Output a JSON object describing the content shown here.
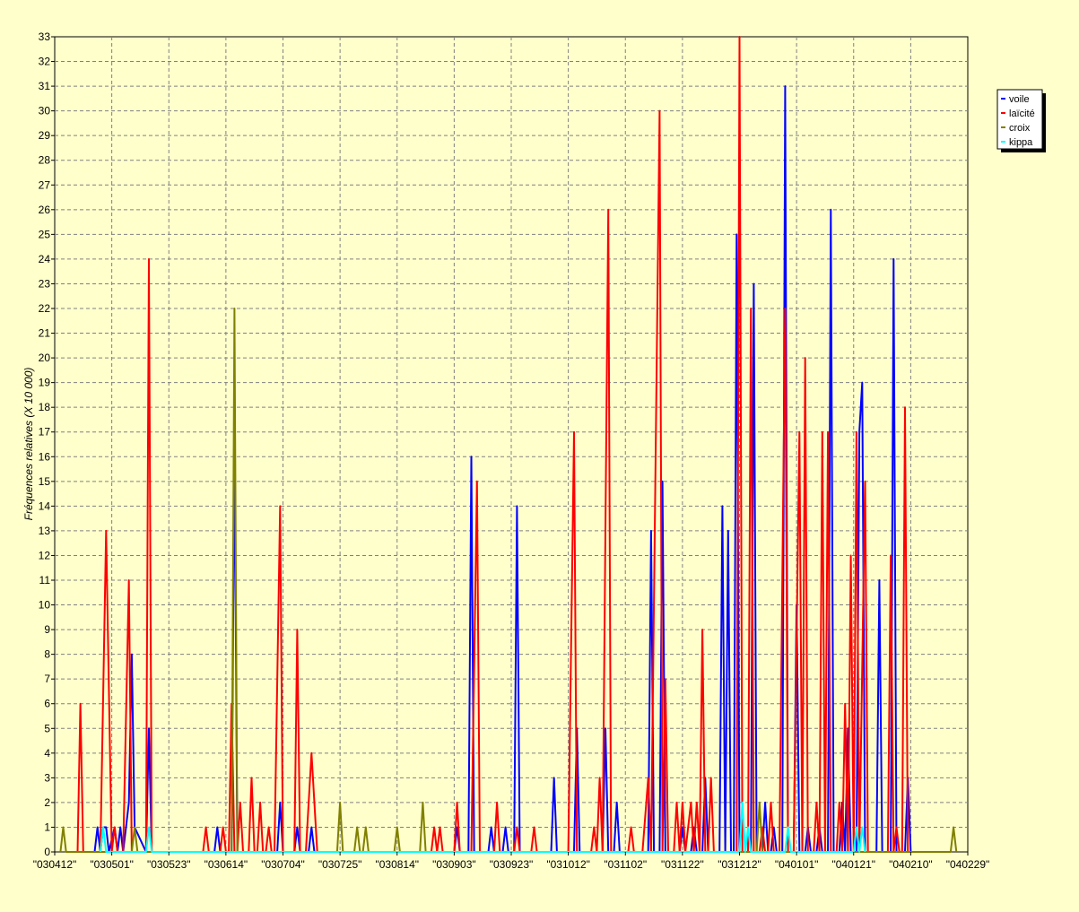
{
  "chart_data": {
    "type": "line",
    "ylabel": "Fréquences relatives (X 10 000)",
    "ylim": [
      0,
      33
    ],
    "yticks": [
      0,
      1,
      2,
      3,
      4,
      5,
      6,
      7,
      8,
      9,
      10,
      11,
      12,
      13,
      14,
      15,
      16,
      17,
      18,
      19,
      20,
      21,
      22,
      23,
      24,
      25,
      26,
      27,
      28,
      29,
      30,
      31,
      32,
      33
    ],
    "xlim": [
      0,
      16
    ],
    "x_tick_labels": [
      "\"030412\"",
      "\"030501\"",
      "\"030523\"",
      "\"030614\"",
      "\"030704\"",
      "\"030725\"",
      "\"030814\"",
      "\"030903\"",
      "\"030923\"",
      "\"031012\"",
      "\"031102\"",
      "\"031122\"",
      "\"031212\"",
      "\"040101\"",
      "\"040121\"",
      "\"040210\"",
      "\"040229\""
    ],
    "grid": true,
    "legend_position": "right",
    "series": [
      {
        "name": "voile",
        "color": "#0000ff",
        "points": [
          [
            0.7,
            0
          ],
          [
            0.75,
            1
          ],
          [
            0.8,
            0
          ],
          [
            0.85,
            1
          ],
          [
            0.9,
            1
          ],
          [
            0.95,
            0
          ],
          [
            1.05,
            1
          ],
          [
            1.1,
            0
          ],
          [
            1.15,
            1
          ],
          [
            1.2,
            0
          ],
          [
            1.3,
            2
          ],
          [
            1.35,
            8
          ],
          [
            1.4,
            1
          ],
          [
            1.6,
            0
          ],
          [
            1.65,
            5
          ],
          [
            1.7,
            0
          ],
          [
            2.8,
            0
          ],
          [
            2.85,
            1
          ],
          [
            2.9,
            0
          ],
          [
            3.05,
            0
          ],
          [
            3.1,
            0
          ],
          [
            3.15,
            17
          ],
          [
            3.2,
            0
          ],
          [
            3.9,
            0
          ],
          [
            3.95,
            2
          ],
          [
            4.0,
            0
          ],
          [
            4.2,
            0
          ],
          [
            4.25,
            1
          ],
          [
            4.3,
            0
          ],
          [
            4.45,
            0
          ],
          [
            4.5,
            1
          ],
          [
            4.55,
            0
          ],
          [
            7.0,
            0
          ],
          [
            7.05,
            1
          ],
          [
            7.1,
            0
          ],
          [
            7.25,
            0
          ],
          [
            7.3,
            16
          ],
          [
            7.35,
            0
          ],
          [
            7.6,
            0
          ],
          [
            7.65,
            1
          ],
          [
            7.7,
            0
          ],
          [
            7.85,
            0
          ],
          [
            7.9,
            1
          ],
          [
            7.95,
            0
          ],
          [
            8.05,
            0
          ],
          [
            8.1,
            14
          ],
          [
            8.15,
            0
          ],
          [
            8.7,
            0
          ],
          [
            8.75,
            3
          ],
          [
            8.8,
            0
          ],
          [
            9.1,
            0
          ],
          [
            9.15,
            5
          ],
          [
            9.2,
            0
          ],
          [
            9.6,
            0
          ],
          [
            9.65,
            5
          ],
          [
            9.7,
            0
          ],
          [
            9.8,
            0
          ],
          [
            9.85,
            2
          ],
          [
            9.9,
            0
          ],
          [
            10.4,
            0
          ],
          [
            10.45,
            13
          ],
          [
            10.5,
            0
          ],
          [
            10.6,
            0
          ],
          [
            10.65,
            15
          ],
          [
            10.7,
            0
          ],
          [
            10.95,
            0
          ],
          [
            11.0,
            1
          ],
          [
            11.05,
            0
          ],
          [
            11.15,
            0
          ],
          [
            11.2,
            1
          ],
          [
            11.25,
            0
          ],
          [
            11.35,
            0
          ],
          [
            11.4,
            3
          ],
          [
            11.45,
            0
          ],
          [
            11.65,
            0
          ],
          [
            11.7,
            14
          ],
          [
            11.75,
            0
          ],
          [
            11.8,
            13
          ],
          [
            11.85,
            0
          ],
          [
            11.9,
            0
          ],
          [
            11.95,
            25
          ],
          [
            12.0,
            0
          ],
          [
            12.2,
            0
          ],
          [
            12.25,
            23
          ],
          [
            12.3,
            0
          ],
          [
            12.4,
            0
          ],
          [
            12.45,
            2
          ],
          [
            12.5,
            0
          ],
          [
            12.55,
            0
          ],
          [
            12.6,
            1
          ],
          [
            12.65,
            0
          ],
          [
            12.75,
            0
          ],
          [
            12.8,
            31
          ],
          [
            12.85,
            0
          ],
          [
            12.95,
            0
          ],
          [
            13.0,
            10
          ],
          [
            13.05,
            0
          ],
          [
            13.15,
            0
          ],
          [
            13.2,
            1
          ],
          [
            13.25,
            0
          ],
          [
            13.35,
            0
          ],
          [
            13.4,
            1
          ],
          [
            13.45,
            0
          ],
          [
            13.55,
            0
          ],
          [
            13.6,
            26
          ],
          [
            13.65,
            0
          ],
          [
            13.75,
            0
          ],
          [
            13.8,
            2
          ],
          [
            13.85,
            0
          ],
          [
            13.9,
            5
          ],
          [
            13.95,
            0
          ],
          [
            14.05,
            0
          ],
          [
            14.1,
            17
          ],
          [
            14.15,
            19
          ],
          [
            14.2,
            0
          ],
          [
            14.4,
            0
          ],
          [
            14.45,
            11
          ],
          [
            14.5,
            0
          ],
          [
            14.65,
            0
          ],
          [
            14.7,
            24
          ],
          [
            14.75,
            0
          ],
          [
            14.9,
            0
          ],
          [
            14.95,
            3
          ],
          [
            15.0,
            0
          ]
        ]
      },
      {
        "name": "laïcité",
        "color": "#ff0000",
        "points": [
          [
            0.4,
            0
          ],
          [
            0.45,
            6
          ],
          [
            0.5,
            0
          ],
          [
            0.8,
            0
          ],
          [
            0.9,
            13
          ],
          [
            1.0,
            0
          ],
          [
            1.05,
            1
          ],
          [
            1.1,
            0
          ],
          [
            1.2,
            0
          ],
          [
            1.3,
            11
          ],
          [
            1.35,
            0
          ],
          [
            1.6,
            0
          ],
          [
            1.65,
            24
          ],
          [
            1.7,
            0
          ],
          [
            2.6,
            0
          ],
          [
            2.65,
            1
          ],
          [
            2.7,
            0
          ],
          [
            2.9,
            0
          ],
          [
            2.95,
            1
          ],
          [
            3.0,
            0
          ],
          [
            3.05,
            0
          ],
          [
            3.1,
            6
          ],
          [
            3.15,
            0
          ],
          [
            3.2,
            0
          ],
          [
            3.25,
            2
          ],
          [
            3.3,
            0
          ],
          [
            3.4,
            0
          ],
          [
            3.45,
            3
          ],
          [
            3.5,
            0
          ],
          [
            3.55,
            0
          ],
          [
            3.6,
            2
          ],
          [
            3.65,
            0
          ],
          [
            3.7,
            0
          ],
          [
            3.75,
            1
          ],
          [
            3.8,
            0
          ],
          [
            3.85,
            0
          ],
          [
            3.95,
            14
          ],
          [
            4.0,
            0
          ],
          [
            4.2,
            0
          ],
          [
            4.25,
            9
          ],
          [
            4.3,
            0
          ],
          [
            4.4,
            0
          ],
          [
            4.5,
            4
          ],
          [
            4.6,
            0
          ],
          [
            6.6,
            0
          ],
          [
            6.65,
            1
          ],
          [
            6.7,
            0
          ],
          [
            6.75,
            1
          ],
          [
            6.8,
            0
          ],
          [
            7.0,
            0
          ],
          [
            7.05,
            2
          ],
          [
            7.1,
            0
          ],
          [
            7.3,
            0
          ],
          [
            7.4,
            15
          ],
          [
            7.45,
            0
          ],
          [
            7.7,
            0
          ],
          [
            7.75,
            2
          ],
          [
            7.8,
            0
          ],
          [
            8.05,
            0
          ],
          [
            8.1,
            1
          ],
          [
            8.15,
            0
          ],
          [
            8.35,
            0
          ],
          [
            8.4,
            1
          ],
          [
            8.45,
            0
          ],
          [
            9.0,
            0
          ],
          [
            9.1,
            17
          ],
          [
            9.15,
            0
          ],
          [
            9.4,
            0
          ],
          [
            9.45,
            1
          ],
          [
            9.5,
            0
          ],
          [
            9.55,
            3
          ],
          [
            9.6,
            0
          ],
          [
            9.7,
            26
          ],
          [
            9.75,
            0
          ],
          [
            10.05,
            0
          ],
          [
            10.1,
            1
          ],
          [
            10.15,
            0
          ],
          [
            10.3,
            0
          ],
          [
            10.4,
            3
          ],
          [
            10.45,
            0
          ],
          [
            10.6,
            30
          ],
          [
            10.65,
            0
          ],
          [
            10.7,
            7
          ],
          [
            10.75,
            0
          ],
          [
            10.85,
            0
          ],
          [
            10.9,
            2
          ],
          [
            10.95,
            0
          ],
          [
            11.0,
            2
          ],
          [
            11.05,
            0
          ],
          [
            11.15,
            2
          ],
          [
            11.2,
            0
          ],
          [
            11.25,
            2
          ],
          [
            11.3,
            0
          ],
          [
            11.35,
            9
          ],
          [
            11.4,
            0
          ],
          [
            11.45,
            0
          ],
          [
            11.5,
            3
          ],
          [
            11.55,
            0
          ],
          [
            11.7,
            0
          ],
          [
            11.75,
            0
          ],
          [
            11.95,
            0
          ],
          [
            12.0,
            33
          ],
          [
            12.05,
            0
          ],
          [
            12.15,
            0
          ],
          [
            12.2,
            22
          ],
          [
            12.25,
            0
          ],
          [
            12.35,
            0
          ],
          [
            12.4,
            1
          ],
          [
            12.45,
            0
          ],
          [
            12.5,
            0
          ],
          [
            12.55,
            2
          ],
          [
            12.6,
            0
          ],
          [
            12.7,
            0
          ],
          [
            12.8,
            22
          ],
          [
            12.85,
            0
          ],
          [
            12.95,
            0
          ],
          [
            13.05,
            17
          ],
          [
            13.1,
            0
          ],
          [
            13.15,
            20
          ],
          [
            13.2,
            0
          ],
          [
            13.3,
            0
          ],
          [
            13.35,
            2
          ],
          [
            13.4,
            0
          ],
          [
            13.45,
            17
          ],
          [
            13.5,
            0
          ],
          [
            13.55,
            17
          ],
          [
            13.6,
            0
          ],
          [
            13.7,
            0
          ],
          [
            13.75,
            2
          ],
          [
            13.8,
            0
          ],
          [
            13.85,
            6
          ],
          [
            13.9,
            0
          ],
          [
            13.95,
            12
          ],
          [
            14.0,
            0
          ],
          [
            14.05,
            17
          ],
          [
            14.1,
            0
          ],
          [
            14.2,
            15
          ],
          [
            14.25,
            0
          ],
          [
            14.6,
            0
          ],
          [
            14.65,
            12
          ],
          [
            14.7,
            0
          ],
          [
            14.75,
            1
          ],
          [
            14.8,
            0
          ],
          [
            14.85,
            0
          ],
          [
            14.9,
            18
          ],
          [
            14.95,
            0
          ]
        ]
      },
      {
        "name": "croix",
        "color": "#808000",
        "points": [
          [
            0.1,
            0
          ],
          [
            0.15,
            1
          ],
          [
            0.2,
            0
          ],
          [
            1.35,
            0
          ],
          [
            1.4,
            1
          ],
          [
            1.45,
            0
          ],
          [
            3.1,
            0
          ],
          [
            3.15,
            22
          ],
          [
            3.2,
            0
          ],
          [
            4.95,
            0
          ],
          [
            5.0,
            2
          ],
          [
            5.05,
            0
          ],
          [
            5.25,
            0
          ],
          [
            5.3,
            1
          ],
          [
            5.35,
            0
          ],
          [
            5.4,
            0
          ],
          [
            5.45,
            1
          ],
          [
            5.5,
            0
          ],
          [
            5.95,
            0
          ],
          [
            6.0,
            1
          ],
          [
            6.05,
            0
          ],
          [
            6.4,
            0
          ],
          [
            6.45,
            2
          ],
          [
            6.5,
            0
          ],
          [
            12.3,
            0
          ],
          [
            12.35,
            2
          ],
          [
            12.4,
            0
          ],
          [
            15.7,
            0
          ],
          [
            15.75,
            1
          ],
          [
            15.8,
            0
          ]
        ]
      },
      {
        "name": "kippa",
        "color": "#00ffff",
        "points": [
          [
            0.8,
            0
          ],
          [
            0.85,
            1
          ],
          [
            0.9,
            0
          ],
          [
            1.6,
            0
          ],
          [
            1.65,
            1
          ],
          [
            1.7,
            0
          ],
          [
            12.0,
            0
          ],
          [
            12.05,
            2
          ],
          [
            12.1,
            0
          ],
          [
            12.15,
            1
          ],
          [
            12.2,
            0
          ],
          [
            12.8,
            0
          ],
          [
            12.85,
            1
          ],
          [
            12.9,
            0
          ],
          [
            14.0,
            0
          ],
          [
            14.05,
            1
          ],
          [
            14.1,
            0
          ],
          [
            14.15,
            1
          ],
          [
            14.2,
            0
          ]
        ]
      }
    ]
  }
}
